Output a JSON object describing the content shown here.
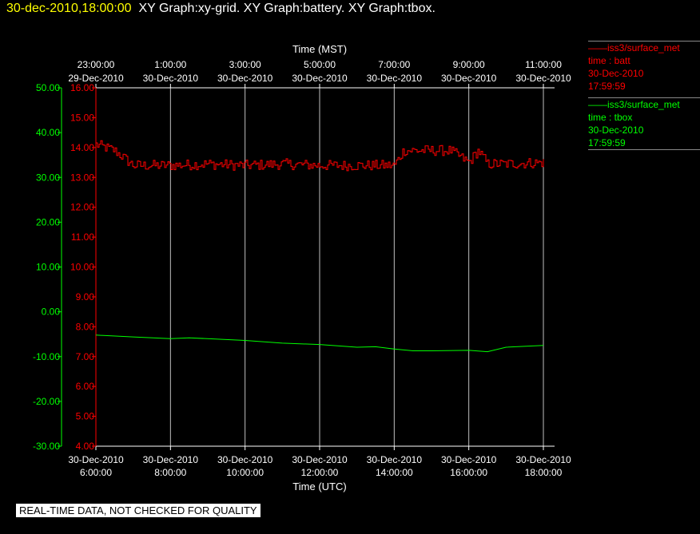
{
  "header": {
    "timestamp": "30-dec-2010,18:00:00",
    "graphs": "XY Graph:xy-grid.  XY Graph:battery.  XY Graph:tbox."
  },
  "legend": [
    {
      "station": "——iss3/surface_met",
      "field": "time : batt",
      "date": "30-Dec-2010",
      "time": "17:59:59",
      "color": "#ff0000"
    },
    {
      "station": "——iss3/surface_met",
      "field": "time : tbox",
      "date": "30-Dec-2010",
      "time": "17:59:59",
      "color": "#00ff00"
    }
  ],
  "notice": "REAL-TIME DATA, NOT CHECKED FOR QUALITY",
  "chart_data": {
    "type": "line",
    "top_axis": {
      "title": "Time (MST)",
      "ticks": [
        {
          "time": "23:00:00",
          "date": "29-Dec-2010"
        },
        {
          "time": "1:00:00",
          "date": "30-Dec-2010"
        },
        {
          "time": "3:00:00",
          "date": "30-Dec-2010"
        },
        {
          "time": "5:00:00",
          "date": "30-Dec-2010"
        },
        {
          "time": "7:00:00",
          "date": "30-Dec-2010"
        },
        {
          "time": "9:00:00",
          "date": "30-Dec-2010"
        },
        {
          "time": "11:00:00",
          "date": "30-Dec-2010"
        }
      ]
    },
    "bottom_axis": {
      "title": "Time (UTC)",
      "xlim": [
        "2010-12-30 06:00",
        "2010-12-30 18:00"
      ],
      "ticks": [
        {
          "date": "30-Dec-2010",
          "time": "6:00:00"
        },
        {
          "date": "30-Dec-2010",
          "time": "8:00:00"
        },
        {
          "date": "30-Dec-2010",
          "time": "10:00:00"
        },
        {
          "date": "30-Dec-2010",
          "time": "12:00:00"
        },
        {
          "date": "30-Dec-2010",
          "time": "14:00:00"
        },
        {
          "date": "30-Dec-2010",
          "time": "16:00:00"
        },
        {
          "date": "30-Dec-2010",
          "time": "18:00:00"
        }
      ]
    },
    "y_axes": [
      {
        "series": "tbox",
        "color": "#00ff00",
        "ylim": [
          -30,
          50
        ],
        "ticks": [
          "50.00",
          "40.00",
          "30.00",
          "20.00",
          "10.00",
          "0.00",
          "-10.00",
          "-20.00",
          "-30.00"
        ]
      },
      {
        "series": "batt",
        "color": "#ff0000",
        "ylim": [
          4,
          16
        ],
        "ticks": [
          "16.00",
          "15.00",
          "14.00",
          "13.00",
          "12.00",
          "11.00",
          "10.00",
          "9.00",
          "8.00",
          "7.00",
          "6.00",
          "5.00",
          "4.00"
        ]
      }
    ],
    "grid": "vertical",
    "series": [
      {
        "name": "batt",
        "color": "#ff0000",
        "x": [
          "2010-12-30 06:00",
          "2010-12-30 06:30",
          "2010-12-30 07:00",
          "2010-12-30 08:00",
          "2010-12-30 09:00",
          "2010-12-30 10:00",
          "2010-12-30 11:00",
          "2010-12-30 12:00",
          "2010-12-30 13:00",
          "2010-12-30 14:00",
          "2010-12-30 14:15",
          "2010-12-30 15:00",
          "2010-12-30 15:30",
          "2010-12-30 16:00",
          "2010-12-30 16:15",
          "2010-12-30 16:30",
          "2010-12-30 17:00",
          "2010-12-30 18:00"
        ],
        "y": [
          14.1,
          13.9,
          13.4,
          13.4,
          13.45,
          13.4,
          13.45,
          13.4,
          13.4,
          13.4,
          13.9,
          13.9,
          13.9,
          13.5,
          13.9,
          13.45,
          13.45,
          13.5
        ],
        "noise": 0.18
      },
      {
        "name": "tbox",
        "color": "#00ff00",
        "x": [
          "2010-12-30 06:00",
          "2010-12-30 07:00",
          "2010-12-30 08:00",
          "2010-12-30 08:30",
          "2010-12-30 10:00",
          "2010-12-30 11:00",
          "2010-12-30 12:00",
          "2010-12-30 13:00",
          "2010-12-30 13:30",
          "2010-12-30 14:00",
          "2010-12-30 14:30",
          "2010-12-30 15:00",
          "2010-12-30 16:00",
          "2010-12-30 16:30",
          "2010-12-30 17:00",
          "2010-12-30 18:00"
        ],
        "y": [
          -5.2,
          -5.6,
          -6.0,
          -5.8,
          -6.4,
          -7.0,
          -7.3,
          -7.9,
          -7.8,
          -8.3,
          -8.7,
          -8.7,
          -8.6,
          -8.9,
          -7.9,
          -7.5
        ],
        "noise": 0
      }
    ]
  }
}
